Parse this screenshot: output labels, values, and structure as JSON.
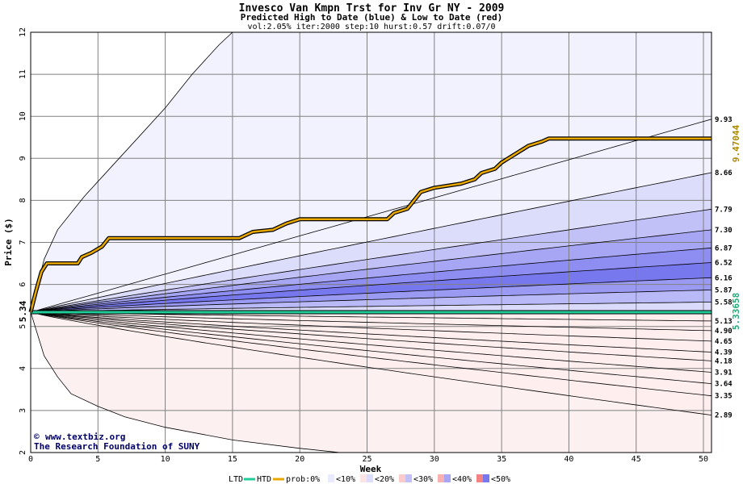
{
  "chart_data": {
    "type": "area",
    "title": "Invesco Van Kmpn Trst for Inv Gr NY - 2009",
    "subtitle": "Predicted High to Date (blue) &  Low to Date (red)",
    "params": "vol:2.05% iter:2000 step:10 hurst:0.57 drift:0.07/0",
    "xlabel": "Week",
    "ylabel": "Price ($)",
    "xlim": [
      0,
      50.6
    ],
    "ylim": [
      2,
      12
    ],
    "x_ticks": [
      0,
      5,
      10,
      15,
      20,
      25,
      30,
      35,
      40,
      45,
      50
    ],
    "y_ticks": [
      2,
      3,
      4,
      5,
      6,
      7,
      8,
      9,
      10,
      11,
      12
    ],
    "grid": true,
    "start_price": 5.34,
    "start_label": "5.34",
    "htd_final_label": "9.47044",
    "ltd_final_label": "5.33658",
    "high_contours_end": [
      "9.93",
      "8.66",
      "7.79",
      "7.30",
      "6.87",
      "6.52",
      "6.16",
      "5.87",
      "5.58"
    ],
    "low_contours_end": [
      "5.13",
      "4.90",
      "4.65",
      "4.39",
      "4.18",
      "3.91",
      "3.64",
      "3.35",
      "2.89"
    ],
    "high_bands": [
      {
        "end": 9.93,
        "fill": "#f2f2fe"
      },
      {
        "end": 8.66,
        "fill": "#dcdcfb"
      },
      {
        "end": 7.79,
        "fill": "#c1c1f8"
      },
      {
        "end": 7.3,
        "fill": "#a6a6f5"
      },
      {
        "end": 6.87,
        "fill": "#8d8df2"
      },
      {
        "end": 6.52,
        "fill": "#7878ee"
      },
      {
        "end": 6.16,
        "fill": "#9a9af3"
      },
      {
        "end": 5.87,
        "fill": "#b9b9f7"
      },
      {
        "end": 5.58,
        "fill": "#dadafb"
      }
    ],
    "low_bands": [
      {
        "end": 5.13,
        "fill": "#fde4e4"
      },
      {
        "end": 4.9,
        "fill": "#fbcaca"
      },
      {
        "end": 4.65,
        "fill": "#f9b0b0"
      },
      {
        "end": 4.39,
        "fill": "#f79898"
      },
      {
        "end": 4.18,
        "fill": "#f58282"
      },
      {
        "end": 3.91,
        "fill": "#f89a9a"
      },
      {
        "end": 3.64,
        "fill": "#fbbdbd"
      },
      {
        "end": 3.35,
        "fill": "#fcdada"
      },
      {
        "end": 2.89,
        "fill": "#feeeee"
      }
    ],
    "outer_high_curve": [
      [
        0,
        5.34
      ],
      [
        1,
        6.6
      ],
      [
        2,
        7.3
      ],
      [
        4,
        8.1
      ],
      [
        6,
        8.8
      ],
      [
        8,
        9.5
      ],
      [
        10,
        10.2
      ],
      [
        12,
        11.0
      ],
      [
        14,
        11.7
      ],
      [
        15,
        12.0
      ]
    ],
    "outer_low_curve": [
      [
        0,
        5.34
      ],
      [
        1,
        4.3
      ],
      [
        2,
        3.8
      ],
      [
        3,
        3.4
      ],
      [
        5,
        3.1
      ],
      [
        7,
        2.85
      ],
      [
        10,
        2.6
      ],
      [
        15,
        2.3
      ],
      [
        20,
        2.1
      ],
      [
        23,
        2.0
      ]
    ],
    "htd_series": {
      "name": "HTD",
      "color": "#e8a800",
      "points": [
        [
          0,
          5.34
        ],
        [
          0.4,
          5.85
        ],
        [
          0.8,
          6.3
        ],
        [
          1.2,
          6.5
        ],
        [
          3.5,
          6.5
        ],
        [
          3.8,
          6.65
        ],
        [
          4.5,
          6.75
        ],
        [
          5.3,
          6.9
        ],
        [
          5.8,
          7.1
        ],
        [
          15.5,
          7.1
        ],
        [
          16.5,
          7.25
        ],
        [
          18,
          7.3
        ],
        [
          19,
          7.45
        ],
        [
          20,
          7.55
        ],
        [
          26.5,
          7.55
        ],
        [
          27,
          7.7
        ],
        [
          28,
          7.8
        ],
        [
          29,
          8.2
        ],
        [
          30,
          8.3
        ],
        [
          31,
          8.35
        ],
        [
          32,
          8.4
        ],
        [
          33,
          8.5
        ],
        [
          33.5,
          8.65
        ],
        [
          34.5,
          8.75
        ],
        [
          35,
          8.9
        ],
        [
          36,
          9.1
        ],
        [
          37,
          9.3
        ],
        [
          38,
          9.4
        ],
        [
          38.5,
          9.47
        ],
        [
          50.6,
          9.47
        ]
      ]
    },
    "ltd_series": {
      "name": "LTD",
      "color": "#22cc99",
      "points": [
        [
          0,
          5.34
        ],
        [
          50.6,
          5.34
        ]
      ]
    },
    "legend": {
      "position": "bottom",
      "ltd_label": "LTD",
      "htd_label": "HTD",
      "prob_label": "prob:0%",
      "bins": [
        "<10%",
        "<20%",
        "<30%",
        "<40%",
        "<50%"
      ],
      "bin_colors": [
        [
          "#ffffff",
          "#eaeaff"
        ],
        [
          "#fde4e4",
          "#dcdcfb"
        ],
        [
          "#fbcaca",
          "#c1c1f8"
        ],
        [
          "#f9b0b0",
          "#a6a6f5"
        ],
        [
          "#f58282",
          "#7878ee"
        ]
      ]
    }
  },
  "credits": {
    "copyright_symbol": "©",
    "site": "www.textbiz.org",
    "org": "The Research Foundation of SUNY"
  }
}
